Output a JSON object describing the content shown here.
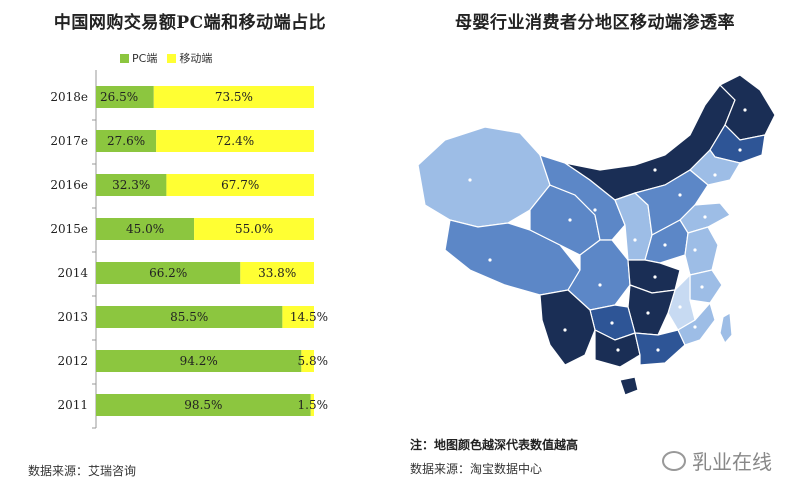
{
  "left": {
    "title": "中国网购交易额PC端和移动端占比",
    "source": "数据来源：艾瑞咨询"
  },
  "right": {
    "title": "母婴行业消费者分地区移动端渗透率",
    "note": "注：地图颜色越深代表数值越高",
    "source": "数据来源：淘宝数据中心",
    "watermark": "乳业在线"
  },
  "colors": {
    "pc": "#8cc63f",
    "mobile": "#ffff33",
    "map_darkest": "#1a2e55",
    "map_dark": "#2e5596",
    "map_mid": "#5c87c7",
    "map_light": "#9dbde6"
  },
  "chart_data": [
    {
      "type": "bar",
      "title": "中国网购交易额PC端和移动端占比",
      "stacked": true,
      "orientation": "horizontal",
      "categories": [
        "2018e",
        "2017e",
        "2016e",
        "2015e",
        "2014",
        "2013",
        "2012",
        "2011"
      ],
      "series": [
        {
          "name": "PC端",
          "values": [
            26.5,
            27.6,
            32.3,
            45.0,
            66.2,
            85.5,
            94.2,
            98.5
          ],
          "labels": [
            "26.5%",
            "27.6%",
            "32.3%",
            "45.0%",
            "66.2%",
            "85.5%",
            "94.2%",
            "98.5%"
          ]
        },
        {
          "name": "移动端",
          "values": [
            73.5,
            72.4,
            67.7,
            55.0,
            33.8,
            14.5,
            5.8,
            1.5
          ],
          "labels": [
            "73.5%",
            "72.4%",
            "67.7%",
            "55.0%",
            "33.8%",
            "14.5%",
            "5.8%",
            "1.5%"
          ]
        }
      ],
      "xlim": [
        0,
        100
      ],
      "legend": "top"
    }
  ]
}
